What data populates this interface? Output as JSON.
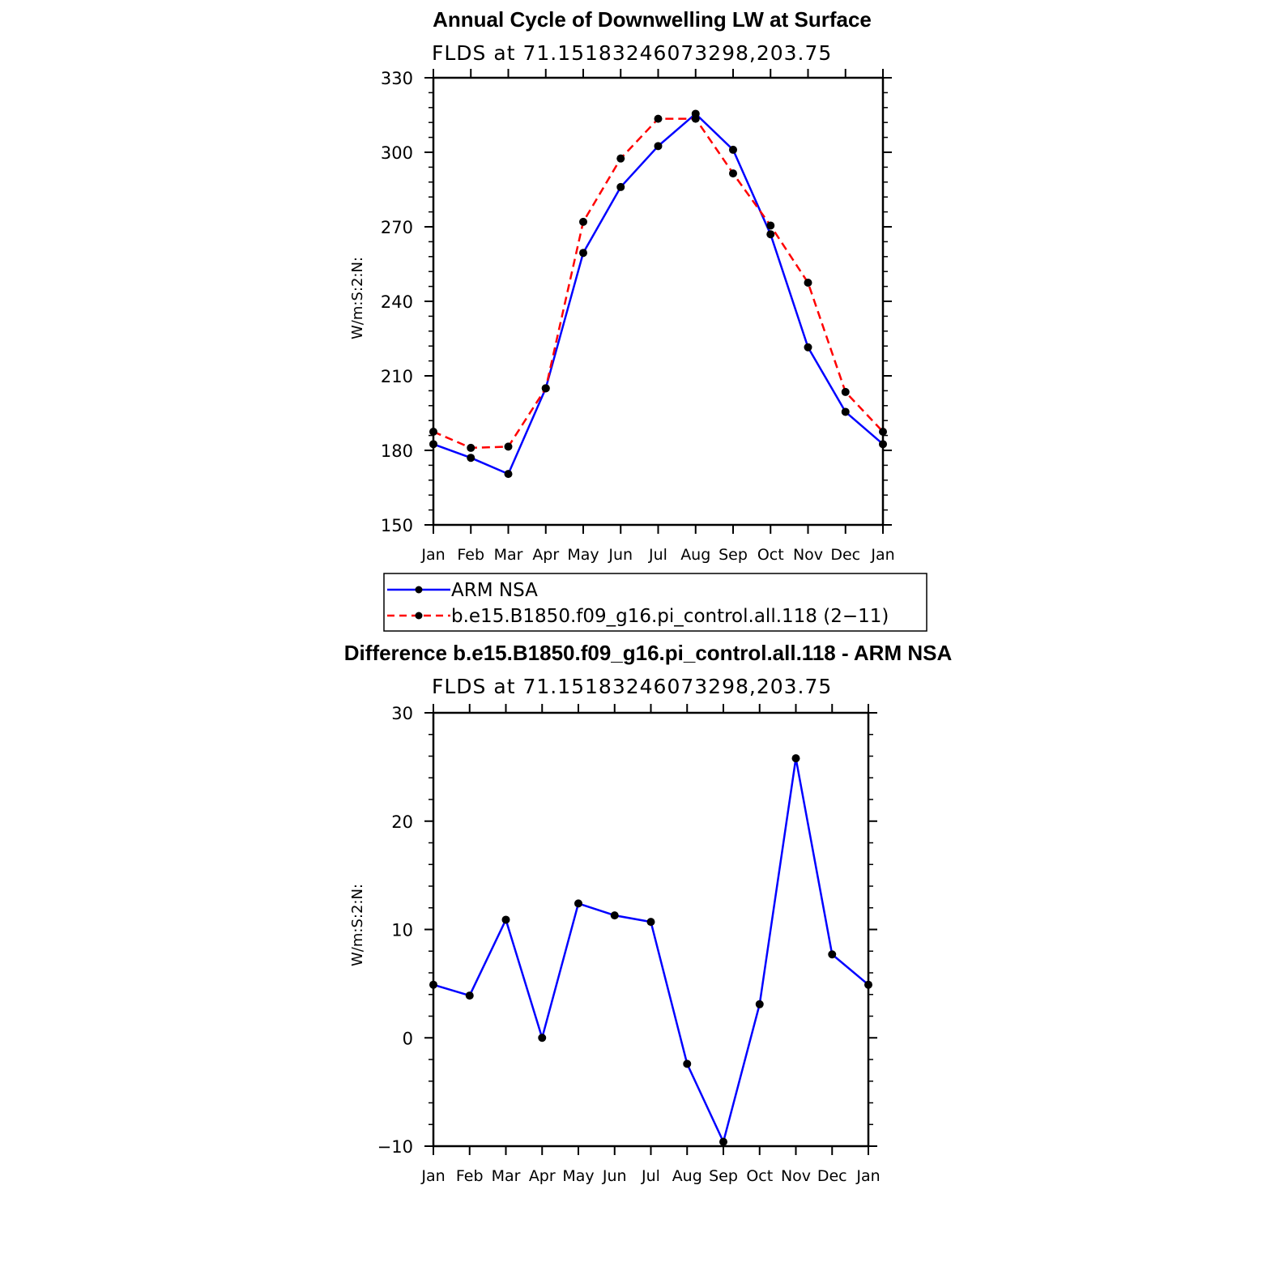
{
  "chart_data": [
    {
      "type": "line",
      "title": "Annual Cycle of Downwelling LW at Surface",
      "subtitle": "FLDS at 71.15183246073298,203.75",
      "ylabel": "W/m:S:2:N:",
      "xlabel": "",
      "ylim": [
        150,
        330
      ],
      "yticks": [
        150,
        180,
        210,
        240,
        270,
        300,
        330
      ],
      "categories": [
        "Jan",
        "Feb",
        "Mar",
        "Apr",
        "May",
        "Jun",
        "Jul",
        "Aug",
        "Sep",
        "Oct",
        "Nov",
        "Dec",
        "Jan"
      ],
      "grid": false,
      "legend_position": "bottom",
      "series": [
        {
          "name": "ARM NSA",
          "color": "#0000ff",
          "dash": "solid",
          "values": [
            182.5,
            177,
            170.5,
            205,
            259.5,
            286,
            302.5,
            315.5,
            301,
            267,
            221.5,
            195.5,
            182.5
          ]
        },
        {
          "name": "b.e15.B1850.f09_g16.pi_control.all.118 (2−11)",
          "color": "#ff0000",
          "dash": "dashed",
          "values": [
            187.5,
            181,
            181.5,
            205,
            272,
            297.5,
            313.5,
            313.5,
            291.5,
            270.5,
            247.5,
            203.5,
            187.5
          ]
        }
      ]
    },
    {
      "type": "line",
      "title": "Difference b.e15.B1850.f09_g16.pi_control.all.118 - ARM NSA",
      "subtitle": "FLDS at 71.15183246073298,203.75",
      "ylabel": "W/m:S:2:N:",
      "xlabel": "",
      "ylim": [
        -10,
        30
      ],
      "yticks": [
        -10,
        0,
        10,
        20,
        30
      ],
      "ytick_labels": [
        "−10",
        "0",
        "10",
        "20",
        "30"
      ],
      "categories": [
        "Jan",
        "Feb",
        "Mar",
        "Apr",
        "May",
        "Jun",
        "Jul",
        "Aug",
        "Sep",
        "Oct",
        "Nov",
        "Dec",
        "Jan"
      ],
      "grid": false,
      "series": [
        {
          "color": "#0000ff",
          "dash": "solid",
          "values": [
            4.9,
            3.9,
            10.9,
            0.0,
            12.4,
            11.3,
            10.7,
            -2.4,
            -9.6,
            3.1,
            25.8,
            7.7,
            4.9
          ]
        }
      ]
    }
  ]
}
